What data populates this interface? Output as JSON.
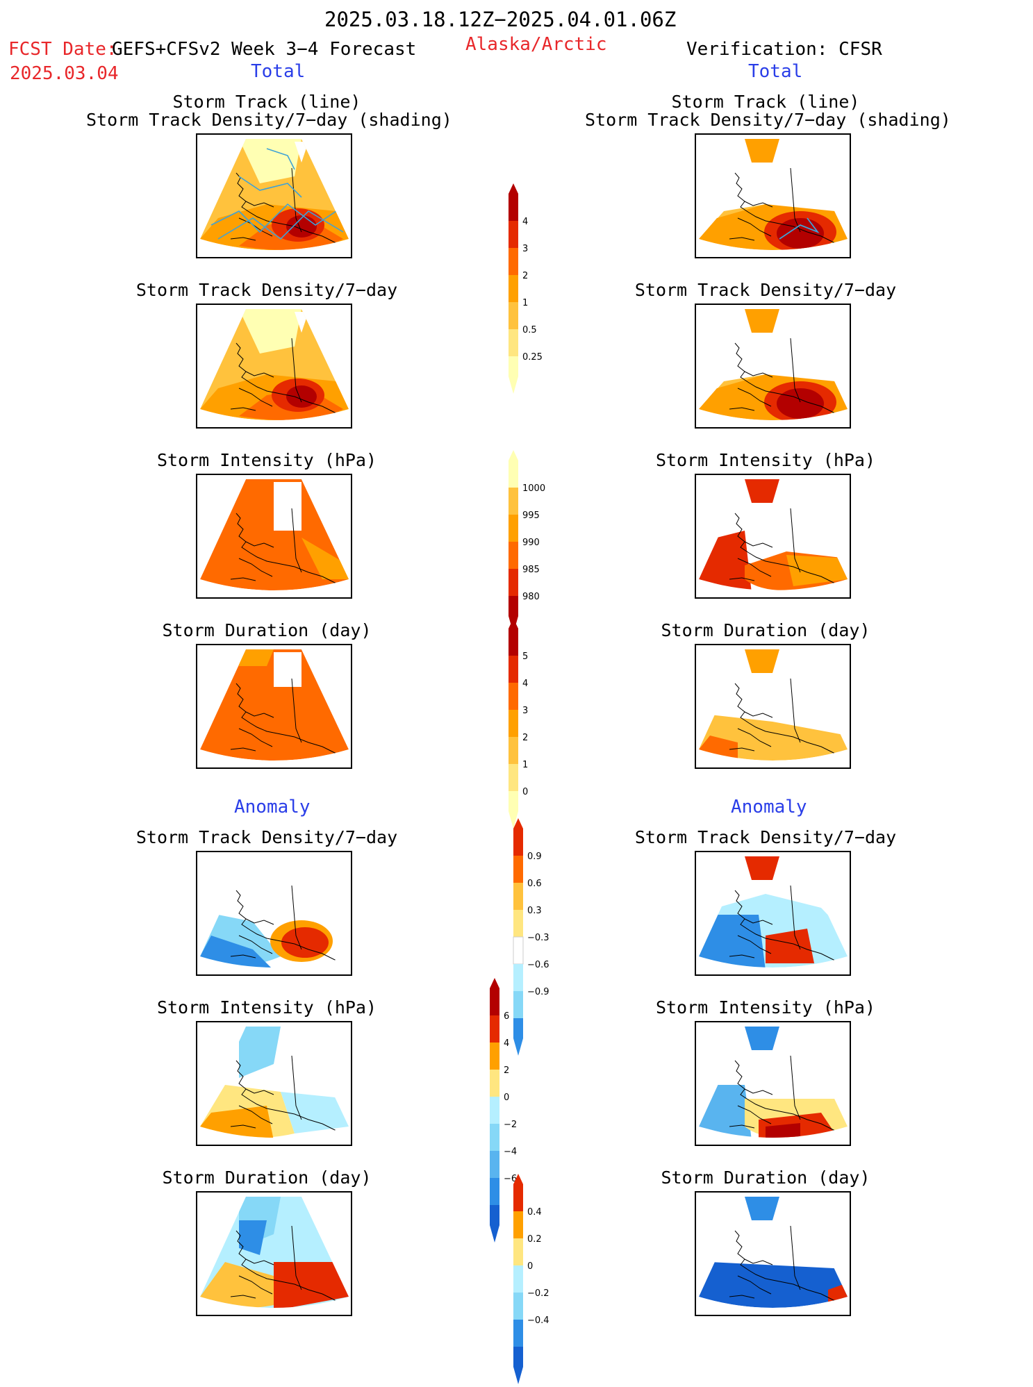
{
  "header": {
    "time_range": "2025.03.18.12Z−2025.04.01.06Z",
    "fcst_date_label": "FCST Date:",
    "fcst_date": "2025.03.04",
    "model": "GEFS+CFSv2 Week 3−4 Forecast",
    "region": "Alaska/Arctic",
    "verification": "Verification: CFSR"
  },
  "columns": {
    "left_total": "Total",
    "right_total": "Total",
    "left_anomaly": "Anomaly",
    "right_anomaly": "Anomaly"
  },
  "panels": {
    "track_title_line1": "Storm Track (line)",
    "track_title_line2": "Storm Track Density/7−day (shading)",
    "density": "Storm Track Density/7−day",
    "intensity": "Storm Intensity (hPa)",
    "duration": "Storm Duration (day)"
  },
  "colorbars": {
    "density_total": [
      "4",
      "3",
      "2",
      "1",
      "0.5",
      "0.25"
    ],
    "intensity_total": [
      "1000",
      "995",
      "990",
      "985",
      "980"
    ],
    "duration_total": [
      "5",
      "4",
      "3",
      "2",
      "1",
      "0"
    ],
    "density_anom": [
      "0.9",
      "0.6",
      "0.3",
      "−0.3",
      "−0.6",
      "−0.9"
    ],
    "intensity_anom": [
      "6",
      "4",
      "2",
      "0",
      "−2",
      "−4",
      "−6"
    ],
    "duration_anom": [
      "0.4",
      "0.2",
      "0",
      "−0.2",
      "−0.4"
    ]
  },
  "colors": {
    "warm": [
      "#ffffb3",
      "#ffe680",
      "#ffc23d",
      "#ffa000",
      "#ff6a00",
      "#e52a00",
      "#b30000"
    ],
    "cool": [
      "#b5efff",
      "#86d8f7",
      "#59b4ef",
      "#2e8ee6",
      "#1560d0"
    ],
    "track_line": "#3fa2d6"
  }
}
